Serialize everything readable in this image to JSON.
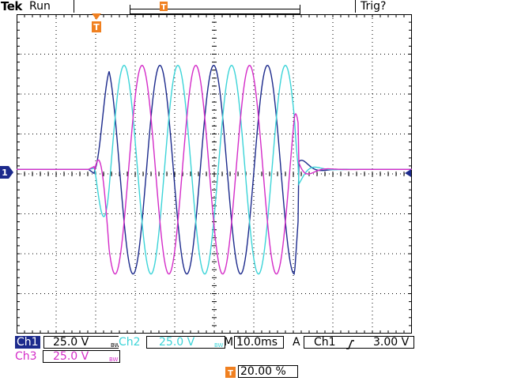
{
  "header": {
    "brand": "Tek",
    "status": "Run",
    "trigger_status": "Trig?"
  },
  "markers": {
    "trigger_position": "T",
    "channel1_ground": "1",
    "trigger_level_marker": "T"
  },
  "channels": [
    {
      "name": "Ch1",
      "scale": "25.0 V",
      "bw_limit": "BW",
      "color": "#1c2a8c"
    },
    {
      "name": "Ch2",
      "scale": "25.0 V",
      "bw_limit": "BW",
      "color": "#3cd4d8"
    },
    {
      "name": "Ch3",
      "scale": "25.0 V",
      "bw_limit": "BW",
      "color": "#d42cc8"
    }
  ],
  "timebase": {
    "label": "M",
    "value": "10.0ms"
  },
  "trigger": {
    "mode": "A",
    "source": "Ch1",
    "slope_icon": "rising-edge-icon",
    "level": "3.00 V"
  },
  "trigger_position_readout": "20.00 %",
  "colors": {
    "graticule": "#000000",
    "trigger_marker": "#f08020",
    "ch1": "#1c2a8c",
    "ch2": "#3cd4d8",
    "ch3": "#d42cc8"
  }
}
